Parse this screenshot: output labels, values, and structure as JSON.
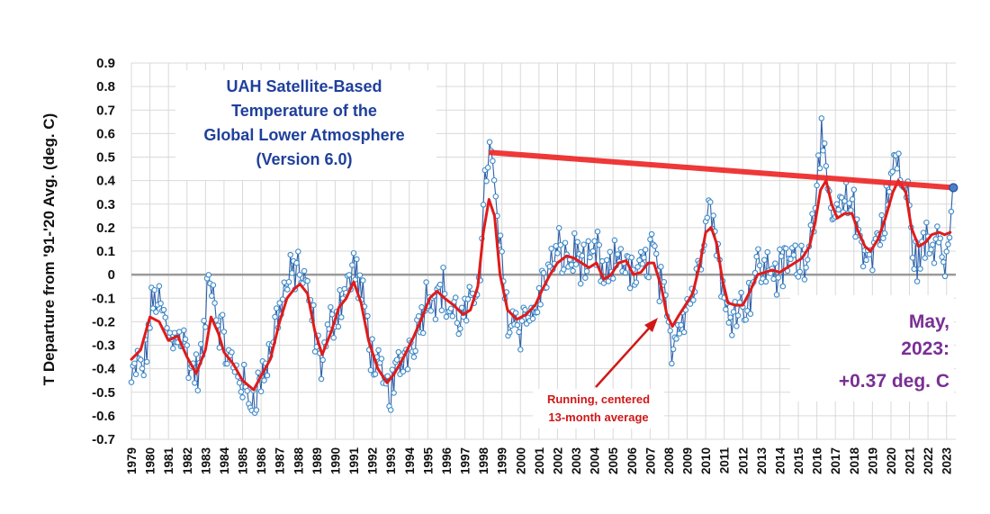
{
  "chart_data": {
    "type": "line",
    "title_lines": [
      "UAH Satellite-Based",
      "Temperature of the",
      "Global Lower Atmosphere",
      "(Version 6.0)"
    ],
    "ylabel": "T Departure from '91-'20 Avg. (deg. C)",
    "xlabel": "",
    "ylim": [
      -0.7,
      0.9
    ],
    "yticks": [
      "0.9",
      "0.8",
      "0.7",
      "0.6",
      "0.5",
      "0.4",
      "0.3",
      "0.2",
      "0.1",
      "0",
      "-0.1",
      "-0.2",
      "-0.3",
      "-0.4",
      "-0.5",
      "-0.6",
      "-0.7"
    ],
    "ytick_values": [
      0.9,
      0.8,
      0.7,
      0.6,
      0.5,
      0.4,
      0.3,
      0.2,
      0.1,
      0,
      -0.1,
      -0.2,
      -0.3,
      -0.4,
      -0.5,
      -0.6,
      -0.7
    ],
    "xlim": [
      1979.0,
      2023.5
    ],
    "xticks": [
      "1979",
      "1980",
      "1981",
      "1982",
      "1983",
      "1984",
      "1985",
      "1986",
      "1987",
      "1988",
      "1989",
      "1990",
      "1991",
      "1992",
      "1993",
      "1994",
      "1995",
      "1996",
      "1997",
      "1998",
      "1999",
      "2000",
      "2001",
      "2002",
      "2003",
      "2004",
      "2005",
      "2006",
      "2007",
      "2008",
      "2009",
      "2010",
      "2011",
      "2012",
      "2013",
      "2014",
      "2015",
      "2016",
      "2017",
      "2018",
      "2019",
      "2020",
      "2021",
      "2022",
      "2023"
    ],
    "grid": true,
    "series": [
      {
        "kind": "monthly",
        "color": "#2e5fa8",
        "marker_color": "#3f8bc9",
        "anchors": [
          [
            1979.0,
            -0.47
          ],
          [
            1979.3,
            -0.38
          ],
          [
            1979.7,
            -0.4
          ],
          [
            1980.0,
            -0.18
          ],
          [
            1980.3,
            -0.08
          ],
          [
            1980.6,
            -0.15
          ],
          [
            1980.9,
            -0.23
          ],
          [
            1981.2,
            -0.3
          ],
          [
            1981.5,
            -0.22
          ],
          [
            1981.9,
            -0.3
          ],
          [
            1982.2,
            -0.4
          ],
          [
            1982.6,
            -0.42
          ],
          [
            1982.9,
            -0.3
          ],
          [
            1983.1,
            -0.05
          ],
          [
            1983.3,
            0.02
          ],
          [
            1983.6,
            -0.18
          ],
          [
            1983.9,
            -0.25
          ],
          [
            1984.2,
            -0.35
          ],
          [
            1984.5,
            -0.4
          ],
          [
            1984.8,
            -0.42
          ],
          [
            1985.1,
            -0.48
          ],
          [
            1985.3,
            -0.55
          ],
          [
            1985.6,
            -0.5
          ],
          [
            1985.9,
            -0.47
          ],
          [
            1986.2,
            -0.4
          ],
          [
            1986.5,
            -0.32
          ],
          [
            1986.8,
            -0.2
          ],
          [
            1987.1,
            -0.1
          ],
          [
            1987.4,
            -0.05
          ],
          [
            1987.7,
            0.0
          ],
          [
            1988.0,
            0.05
          ],
          [
            1988.3,
            -0.05
          ],
          [
            1988.6,
            -0.1
          ],
          [
            1988.9,
            -0.25
          ],
          [
            1989.2,
            -0.38
          ],
          [
            1989.5,
            -0.3
          ],
          [
            1989.8,
            -0.2
          ],
          [
            1990.1,
            -0.15
          ],
          [
            1990.4,
            -0.08
          ],
          [
            1990.7,
            -0.05
          ],
          [
            1991.0,
            0.05
          ],
          [
            1991.3,
            -0.05
          ],
          [
            1991.6,
            -0.15
          ],
          [
            1991.9,
            -0.3
          ],
          [
            1992.2,
            -0.4
          ],
          [
            1992.5,
            -0.45
          ],
          [
            1992.8,
            -0.5
          ],
          [
            1993.1,
            -0.48
          ],
          [
            1993.4,
            -0.4
          ],
          [
            1993.7,
            -0.35
          ],
          [
            1994.0,
            -0.3
          ],
          [
            1994.3,
            -0.25
          ],
          [
            1994.6,
            -0.18
          ],
          [
            1994.9,
            -0.1
          ],
          [
            1995.2,
            -0.05
          ],
          [
            1995.5,
            -0.1
          ],
          [
            1995.8,
            -0.05
          ],
          [
            1996.1,
            -0.15
          ],
          [
            1996.4,
            -0.15
          ],
          [
            1996.7,
            -0.2
          ],
          [
            1997.0,
            -0.18
          ],
          [
            1997.3,
            -0.15
          ],
          [
            1997.6,
            -0.05
          ],
          [
            1997.9,
            0.1
          ],
          [
            1998.1,
            0.4
          ],
          [
            1998.3,
            0.55
          ],
          [
            1998.5,
            0.42
          ],
          [
            1998.7,
            0.3
          ],
          [
            1998.9,
            0.1
          ],
          [
            1999.1,
            -0.05
          ],
          [
            1999.4,
            -0.2
          ],
          [
            1999.7,
            -0.18
          ],
          [
            2000.0,
            -0.22
          ],
          [
            2000.3,
            -0.15
          ],
          [
            2000.6,
            -0.2
          ],
          [
            2000.9,
            -0.12
          ],
          [
            2001.2,
            -0.05
          ],
          [
            2001.5,
            0.02
          ],
          [
            2001.8,
            0.05
          ],
          [
            2002.1,
            0.1
          ],
          [
            2002.4,
            0.08
          ],
          [
            2002.7,
            0.05
          ],
          [
            2003.0,
            0.1
          ],
          [
            2003.3,
            0.05
          ],
          [
            2003.6,
            0.02
          ],
          [
            2003.9,
            0.05
          ],
          [
            2004.2,
            0.1
          ],
          [
            2004.5,
            -0.05
          ],
          [
            2004.8,
            0.0
          ],
          [
            2005.1,
            0.05
          ],
          [
            2005.4,
            0.1
          ],
          [
            2005.7,
            0.05
          ],
          [
            2006.0,
            -0.02
          ],
          [
            2006.3,
            0.0
          ],
          [
            2006.6,
            0.02
          ],
          [
            2006.9,
            0.08
          ],
          [
            2007.1,
            0.15
          ],
          [
            2007.4,
            0.0
          ],
          [
            2007.7,
            -0.1
          ],
          [
            2008.0,
            -0.25
          ],
          [
            2008.2,
            -0.3
          ],
          [
            2008.5,
            -0.2
          ],
          [
            2008.8,
            -0.15
          ],
          [
            2009.1,
            -0.1
          ],
          [
            2009.4,
            -0.05
          ],
          [
            2009.7,
            0.05
          ],
          [
            2009.9,
            0.2
          ],
          [
            2010.1,
            0.35
          ],
          [
            2010.3,
            0.25
          ],
          [
            2010.6,
            0.15
          ],
          [
            2010.9,
            -0.05
          ],
          [
            2011.1,
            -0.2
          ],
          [
            2011.4,
            -0.15
          ],
          [
            2011.7,
            -0.1
          ],
          [
            2012.0,
            -0.15
          ],
          [
            2012.3,
            -0.1
          ],
          [
            2012.6,
            0.0
          ],
          [
            2012.9,
            0.05
          ],
          [
            2013.2,
            0.0
          ],
          [
            2013.5,
            0.05
          ],
          [
            2013.8,
            0.0
          ],
          [
            2014.1,
            0.02
          ],
          [
            2014.4,
            0.05
          ],
          [
            2014.7,
            0.08
          ],
          [
            2015.0,
            0.05
          ],
          [
            2015.3,
            0.08
          ],
          [
            2015.6,
            0.15
          ],
          [
            2015.9,
            0.3
          ],
          [
            2016.1,
            0.55
          ],
          [
            2016.3,
            0.6
          ],
          [
            2016.5,
            0.35
          ],
          [
            2016.8,
            0.25
          ],
          [
            2017.1,
            0.25
          ],
          [
            2017.4,
            0.28
          ],
          [
            2017.7,
            0.3
          ],
          [
            2017.9,
            0.35
          ],
          [
            2018.1,
            0.2
          ],
          [
            2018.4,
            0.15
          ],
          [
            2018.7,
            0.1
          ],
          [
            2018.9,
            0.05
          ],
          [
            2019.2,
            0.15
          ],
          [
            2019.5,
            0.2
          ],
          [
            2019.8,
            0.3
          ],
          [
            2020.1,
            0.45
          ],
          [
            2020.3,
            0.5
          ],
          [
            2020.6,
            0.38
          ],
          [
            2020.9,
            0.35
          ],
          [
            2021.1,
            0.15
          ],
          [
            2021.4,
            0.05
          ],
          [
            2021.7,
            0.1
          ],
          [
            2021.9,
            0.15
          ],
          [
            2022.2,
            0.1
          ],
          [
            2022.5,
            0.2
          ],
          [
            2022.8,
            0.15
          ],
          [
            2023.0,
            0.05
          ],
          [
            2023.2,
            0.18
          ],
          [
            2023.37,
            0.37
          ]
        ]
      },
      {
        "kind": "running_13_month",
        "color": "#e01b1b",
        "points": [
          [
            1979.0,
            -0.36
          ],
          [
            1979.5,
            -0.32
          ],
          [
            1980.0,
            -0.18
          ],
          [
            1980.5,
            -0.2
          ],
          [
            1981.0,
            -0.28
          ],
          [
            1981.5,
            -0.26
          ],
          [
            1982.0,
            -0.35
          ],
          [
            1982.5,
            -0.42
          ],
          [
            1983.0,
            -0.32
          ],
          [
            1983.3,
            -0.18
          ],
          [
            1983.7,
            -0.25
          ],
          [
            1984.0,
            -0.33
          ],
          [
            1984.5,
            -0.38
          ],
          [
            1985.0,
            -0.45
          ],
          [
            1985.6,
            -0.49
          ],
          [
            1986.0,
            -0.43
          ],
          [
            1986.5,
            -0.36
          ],
          [
            1987.0,
            -0.2
          ],
          [
            1987.4,
            -0.1
          ],
          [
            1987.8,
            -0.06
          ],
          [
            1988.1,
            -0.04
          ],
          [
            1988.5,
            -0.08
          ],
          [
            1988.9,
            -0.24
          ],
          [
            1989.3,
            -0.34
          ],
          [
            1989.8,
            -0.24
          ],
          [
            1990.2,
            -0.14
          ],
          [
            1990.6,
            -0.1
          ],
          [
            1991.0,
            -0.03
          ],
          [
            1991.4,
            -0.12
          ],
          [
            1991.8,
            -0.28
          ],
          [
            1992.3,
            -0.4
          ],
          [
            1992.8,
            -0.46
          ],
          [
            1993.2,
            -0.42
          ],
          [
            1993.7,
            -0.35
          ],
          [
            1994.2,
            -0.27
          ],
          [
            1994.7,
            -0.18
          ],
          [
            1995.1,
            -0.1
          ],
          [
            1995.5,
            -0.07
          ],
          [
            1995.9,
            -0.1
          ],
          [
            1996.4,
            -0.13
          ],
          [
            1996.9,
            -0.17
          ],
          [
            1997.3,
            -0.15
          ],
          [
            1997.7,
            -0.05
          ],
          [
            1998.0,
            0.18
          ],
          [
            1998.3,
            0.32
          ],
          [
            1998.6,
            0.25
          ],
          [
            1998.9,
            0.0
          ],
          [
            1999.3,
            -0.15
          ],
          [
            1999.8,
            -0.19
          ],
          [
            2000.3,
            -0.17
          ],
          [
            2000.8,
            -0.13
          ],
          [
            2001.2,
            -0.06
          ],
          [
            2001.6,
            0.0
          ],
          [
            2002.0,
            0.05
          ],
          [
            2002.5,
            0.08
          ],
          [
            2002.9,
            0.07
          ],
          [
            2003.3,
            0.05
          ],
          [
            2003.7,
            0.03
          ],
          [
            2004.1,
            0.05
          ],
          [
            2004.5,
            -0.02
          ],
          [
            2004.9,
            0.0
          ],
          [
            2005.3,
            0.05
          ],
          [
            2005.7,
            0.06
          ],
          [
            2006.1,
            0.0
          ],
          [
            2006.5,
            0.01
          ],
          [
            2006.9,
            0.05
          ],
          [
            2007.2,
            0.05
          ],
          [
            2007.6,
            -0.05
          ],
          [
            2007.9,
            -0.17
          ],
          [
            2008.2,
            -0.22
          ],
          [
            2008.5,
            -0.18
          ],
          [
            2008.9,
            -0.13
          ],
          [
            2009.3,
            -0.08
          ],
          [
            2009.7,
            0.05
          ],
          [
            2010.0,
            0.18
          ],
          [
            2010.3,
            0.2
          ],
          [
            2010.6,
            0.13
          ],
          [
            2010.9,
            -0.02
          ],
          [
            2011.2,
            -0.12
          ],
          [
            2011.6,
            -0.13
          ],
          [
            2012.0,
            -0.13
          ],
          [
            2012.4,
            -0.07
          ],
          [
            2012.8,
            0.0
          ],
          [
            2013.2,
            0.01
          ],
          [
            2013.6,
            0.02
          ],
          [
            2014.0,
            0.01
          ],
          [
            2014.4,
            0.03
          ],
          [
            2014.8,
            0.05
          ],
          [
            2015.2,
            0.07
          ],
          [
            2015.6,
            0.12
          ],
          [
            2015.9,
            0.22
          ],
          [
            2016.2,
            0.36
          ],
          [
            2016.5,
            0.4
          ],
          [
            2016.8,
            0.3
          ],
          [
            2017.1,
            0.24
          ],
          [
            2017.5,
            0.26
          ],
          [
            2017.9,
            0.26
          ],
          [
            2018.2,
            0.19
          ],
          [
            2018.6,
            0.12
          ],
          [
            2018.9,
            0.1
          ],
          [
            2019.3,
            0.15
          ],
          [
            2019.7,
            0.24
          ],
          [
            2020.1,
            0.35
          ],
          [
            2020.4,
            0.4
          ],
          [
            2020.8,
            0.35
          ],
          [
            2021.1,
            0.2
          ],
          [
            2021.5,
            0.12
          ],
          [
            2021.9,
            0.14
          ],
          [
            2022.2,
            0.17
          ],
          [
            2022.6,
            0.18
          ],
          [
            2022.9,
            0.17
          ],
          [
            2023.2,
            0.18
          ]
        ]
      },
      {
        "kind": "trend_overlay",
        "color": "#ee2828",
        "points": [
          [
            1998.3,
            0.52
          ],
          [
            2023.37,
            0.37
          ]
        ]
      }
    ],
    "annotations": {
      "running_label": [
        "Running, centered",
        "13-month average"
      ],
      "callout": [
        "May,",
        "2023:",
        "+0.37 deg. C"
      ]
    }
  }
}
